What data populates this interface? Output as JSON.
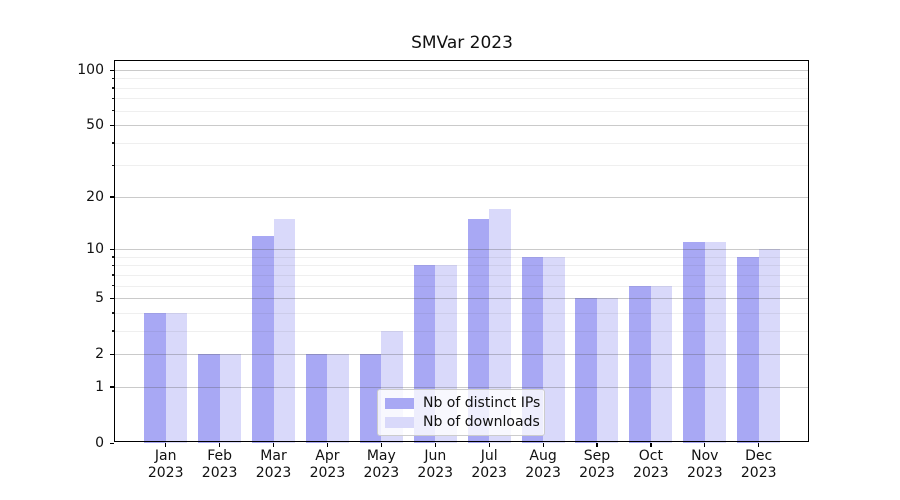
{
  "figure": {
    "title": "SMVar 2023",
    "background_color": "#ffffff"
  },
  "chart_data": {
    "type": "bar",
    "title": "SMVar 2023",
    "xlabel": "",
    "ylabel": "",
    "categories": [
      "Jan",
      "Feb",
      "Mar",
      "Apr",
      "May",
      "Jun",
      "Jul",
      "Aug",
      "Sep",
      "Oct",
      "Nov",
      "Dec"
    ],
    "category_year": "2023",
    "series": [
      {
        "name": "Nb of distinct IPs",
        "color": "#a8a8f4",
        "values": [
          4,
          2,
          12,
          2,
          2,
          8,
          15,
          9,
          5,
          6,
          11,
          9
        ]
      },
      {
        "name": "Nb of downloads",
        "color": "#d9d9fa",
        "values": [
          4,
          2,
          15,
          2,
          3,
          8,
          17,
          9,
          5,
          6,
          11,
          10
        ]
      }
    ],
    "yscale": "log1p",
    "ylim": [
      0,
      113
    ],
    "yticks": [
      0,
      1,
      2,
      5,
      10,
      20,
      50,
      100
    ],
    "yticks_minor": [
      3,
      4,
      6,
      7,
      8,
      9,
      30,
      40,
      60,
      70,
      80,
      90
    ],
    "grid": true,
    "legend": {
      "entries": [
        "Nb of distinct IPs",
        "Nb of downloads"
      ],
      "position": "lower-center"
    }
  }
}
